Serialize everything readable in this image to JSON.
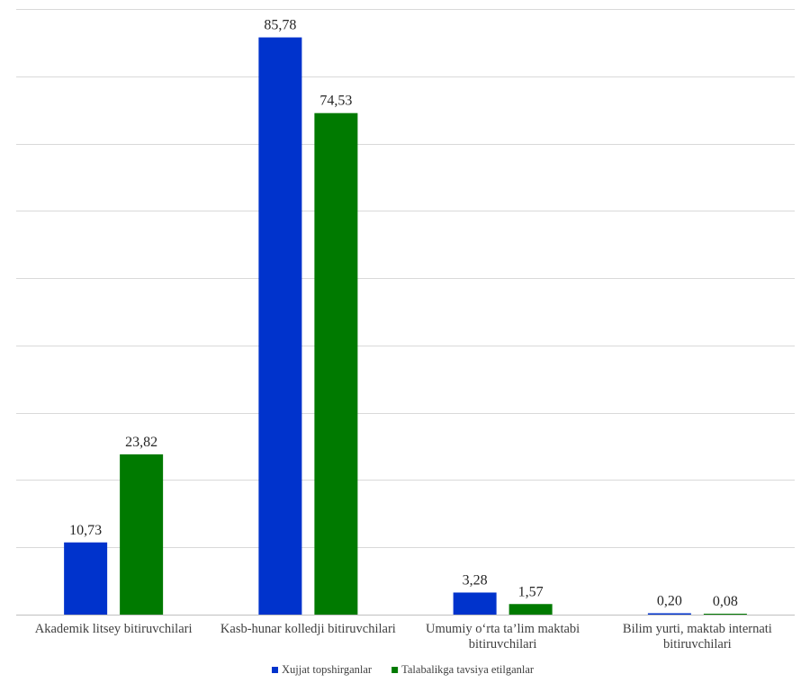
{
  "chart_data": {
    "type": "bar",
    "categories": [
      [
        "Akademik litsey bitiruvchilari"
      ],
      [
        "Kasb-hunar kolledji bitiruvchilari"
      ],
      [
        "Umumiy o‘rta ta’lim maktabi",
        "bitiruvchilari"
      ],
      [
        "Bilim yurti, maktab internati",
        "bitiruvchilari"
      ]
    ],
    "series": [
      {
        "name": "Xujjat topshirganlar",
        "color": "#0033cc",
        "values": [
          10.73,
          85.78,
          3.28,
          0.2
        ],
        "labels": [
          "10,73",
          "85,78",
          "3,28",
          "0,20"
        ]
      },
      {
        "name": "Talabalikga tavsiya etilganlar",
        "color": "#007a00",
        "values": [
          23.82,
          74.53,
          1.57,
          0.08
        ],
        "labels": [
          "23,82",
          "74,53",
          "1,57",
          "0,08"
        ]
      }
    ],
    "ylim": [
      0,
      90
    ],
    "y_gridline_step": 10,
    "y_axis_visible": false,
    "grid": true,
    "legend_position": "bottom"
  }
}
